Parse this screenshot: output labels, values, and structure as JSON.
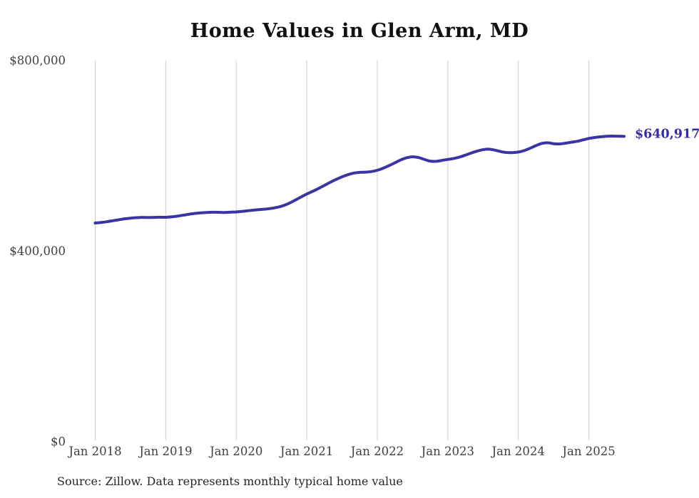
{
  "title": "Home Values in Glen Arm, MD",
  "source_note": "Source: Zillow. Data represents monthly typical home value",
  "styles": {
    "background": "#ffffff",
    "grid_color": "#cccccc",
    "tick_color": "#404040",
    "title_color": "#111111",
    "source_color": "#262626",
    "line_color": "#3a34a4",
    "end_label_color": "#332d9f"
  },
  "chart_data": {
    "type": "line",
    "title": "Home Values in Glen Arm, MD",
    "x_unit": "month",
    "x_range": [
      "Jan 2018",
      "Jul 2025"
    ],
    "grid": "vertical-only",
    "legend": "none",
    "ylim": [
      0,
      800000
    ],
    "y_ticks": [
      {
        "label": "$800,000",
        "value": 800000
      },
      {
        "label": "$400,000",
        "value": 400000
      },
      {
        "label": "$0",
        "value": 0
      }
    ],
    "x_ticks": [
      {
        "label": "Jan 2018",
        "month_index": 0
      },
      {
        "label": "Jan 2019",
        "month_index": 12
      },
      {
        "label": "Jan 2020",
        "month_index": 24
      },
      {
        "label": "Jan 2021",
        "month_index": 36
      },
      {
        "label": "Jan 2022",
        "month_index": 48
      },
      {
        "label": "Jan 2023",
        "month_index": 60
      },
      {
        "label": "Jan 2024",
        "month_index": 72
      },
      {
        "label": "Jan 2025",
        "month_index": 84
      }
    ],
    "end_label": "$640,917",
    "latest_value": 640917,
    "series_name": "Typical home value",
    "values": [
      459000,
      460200,
      461800,
      463800,
      465800,
      467800,
      469200,
      470200,
      470800,
      470600,
      470800,
      471200,
      471000,
      472000,
      473500,
      475500,
      477500,
      479200,
      480400,
      481200,
      481600,
      481500,
      481200,
      481800,
      482300,
      483400,
      484800,
      486200,
      487300,
      488300,
      489800,
      492000,
      495500,
      500500,
      506800,
      513500,
      519900,
      525500,
      531500,
      538000,
      544500,
      550500,
      556000,
      560500,
      563800,
      565500,
      565800,
      567000,
      569700,
      574000,
      579500,
      585500,
      591500,
      596000,
      598000,
      596500,
      592500,
      589000,
      588500,
      590500,
      592500,
      594500,
      597500,
      601500,
      606000,
      610000,
      613000,
      614000,
      612000,
      609000,
      607000,
      606800,
      608000,
      611000,
      616000,
      621500,
      626000,
      627500,
      625500,
      625000,
      626500,
      628500,
      630500,
      633500,
      636500,
      638500,
      640000,
      641200,
      641500,
      641200,
      640917
    ]
  }
}
